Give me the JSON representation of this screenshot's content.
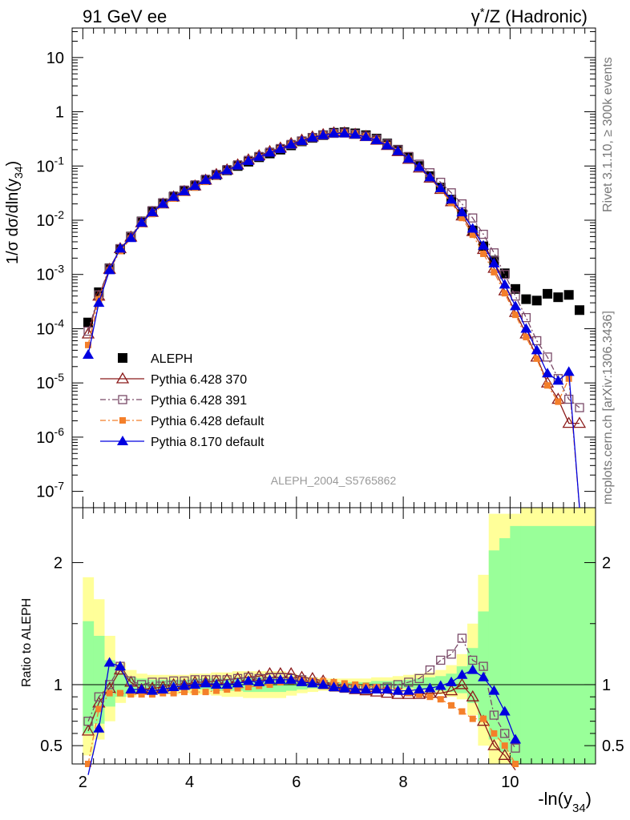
{
  "header": {
    "left": "91 GeV ee",
    "right_sup": "*",
    "right_pre": "γ",
    "right_post": "/Z (Hadronic)"
  },
  "side": {
    "rivet": "Rivet 3.1.10, ≥ 300k events",
    "mcplots": "mcplots.cern.ch [arXiv:1306.3436]"
  },
  "analysis_label": "ALEPH_2004_S5765862",
  "ylabel_top": "1/σ dσ/dln(y34)",
  "ylabel_top_parts": {
    "pre": "1/σ  dσ/dln(y",
    "sub": "34",
    "post": ")"
  },
  "ylabel_bottom": "Ratio to ALEPH",
  "xlabel_parts": {
    "pre": "-ln(y",
    "sub": "34",
    "post": ")"
  },
  "colors": {
    "aleph": "#000000",
    "p370": "#8b1a1a",
    "p391": "#7a4a68",
    "pdef": "#f47f2a",
    "p8": "#0000e0",
    "band_green": "#99ff99",
    "band_yellow": "#ffff99"
  },
  "chart_data": [
    {
      "type": "line",
      "panel": "main",
      "yscale": "log",
      "xlim": [
        1.8,
        11.6
      ],
      "ylim": [
        5e-08,
        35
      ],
      "y_ticks": [
        "10^-7",
        "10^-6",
        "10^-5",
        "10^-4",
        "10^-3",
        "10^-2",
        "10^-1",
        "1",
        "10"
      ],
      "x": [
        2.1,
        2.3,
        2.5,
        2.7,
        2.9,
        3.1,
        3.3,
        3.5,
        3.7,
        3.9,
        4.1,
        4.3,
        4.5,
        4.7,
        4.9,
        5.1,
        5.3,
        5.5,
        5.7,
        5.9,
        6.1,
        6.3,
        6.5,
        6.7,
        6.9,
        7.1,
        7.3,
        7.5,
        7.7,
        7.9,
        8.1,
        8.3,
        8.5,
        8.7,
        8.9,
        9.1,
        9.3,
        9.5,
        9.7,
        9.9,
        10.1,
        10.3,
        10.5,
        10.7,
        10.9,
        11.1,
        11.3
      ],
      "series": [
        {
          "name": "ALEPH",
          "marker": "square-filled",
          "line": "none",
          "values": [
            0.00013,
            0.00047,
            0.0013,
            0.0029,
            0.005,
            0.0095,
            0.0145,
            0.0205,
            0.027,
            0.035,
            0.043,
            0.055,
            0.068,
            0.083,
            0.1,
            0.12,
            0.145,
            0.17,
            0.2,
            0.24,
            0.285,
            0.33,
            0.37,
            0.41,
            0.42,
            0.4,
            0.37,
            0.32,
            0.26,
            0.2,
            0.145,
            0.1,
            0.065,
            0.04,
            0.024,
            0.013,
            0.0065,
            0.0033,
            0.0018,
            0.00105,
            0.00054,
            0.00035,
            0.00033,
            0.00044,
            0.00038,
            0.00042,
            0.00022
          ]
        },
        {
          "name": "Pythia 6.428 370",
          "marker": "triangle-open",
          "line": "solid",
          "values": [
            8e-05,
            0.0004,
            0.00125,
            0.003,
            0.0049,
            0.009,
            0.014,
            0.02,
            0.027,
            0.034,
            0.043,
            0.055,
            0.07,
            0.085,
            0.105,
            0.13,
            0.155,
            0.185,
            0.215,
            0.26,
            0.3,
            0.345,
            0.38,
            0.41,
            0.41,
            0.385,
            0.35,
            0.3,
            0.24,
            0.185,
            0.133,
            0.092,
            0.06,
            0.037,
            0.022,
            0.012,
            0.0062,
            0.0029,
            0.0013,
            0.0005,
            0.0002,
            8e-05,
            3e-05,
            1e-05,
            5e-06,
            1.8e-06,
            1.8e-06
          ]
        },
        {
          "name": "Pythia 6.428 391",
          "marker": "square-open",
          "line": "dashdot",
          "values": [
            9e-05,
            0.00042,
            0.0013,
            0.003,
            0.005,
            0.0095,
            0.015,
            0.021,
            0.028,
            0.036,
            0.045,
            0.057,
            0.07,
            0.086,
            0.105,
            0.127,
            0.15,
            0.18,
            0.21,
            0.25,
            0.29,
            0.335,
            0.37,
            0.4,
            0.405,
            0.385,
            0.355,
            0.31,
            0.255,
            0.2,
            0.15,
            0.108,
            0.075,
            0.05,
            0.032,
            0.02,
            0.011,
            0.0055,
            0.0025,
            0.001,
            0.0004,
            0.00016,
            6e-05,
            3e-05,
            1.2e-05,
            5e-06,
            3.5e-06
          ]
        },
        {
          "name": "Pythia 6.428 default",
          "marker": "square-filled-small",
          "line": "dashdot",
          "values": [
            5e-05,
            0.00035,
            0.0012,
            0.0027,
            0.0046,
            0.0085,
            0.013,
            0.019,
            0.025,
            0.032,
            0.04,
            0.051,
            0.064,
            0.079,
            0.098,
            0.12,
            0.145,
            0.175,
            0.205,
            0.25,
            0.29,
            0.335,
            0.375,
            0.405,
            0.41,
            0.39,
            0.355,
            0.305,
            0.245,
            0.188,
            0.135,
            0.092,
            0.06,
            0.036,
            0.021,
            0.011,
            0.0054,
            0.0024,
            0.0011,
            0.00045,
            0.00018,
            7e-05,
            2.8e-05,
            9e-06,
            4.5e-06,
            1.2e-05,
            0
          ]
        },
        {
          "name": "Pythia 8.170 default",
          "marker": "triangle-filled",
          "line": "solid",
          "values": [
            3.3e-05,
            0.0003,
            0.0012,
            0.003,
            0.0047,
            0.009,
            0.014,
            0.02,
            0.027,
            0.034,
            0.043,
            0.055,
            0.068,
            0.083,
            0.102,
            0.124,
            0.148,
            0.177,
            0.207,
            0.25,
            0.29,
            0.335,
            0.37,
            0.4,
            0.4,
            0.38,
            0.345,
            0.3,
            0.24,
            0.188,
            0.136,
            0.095,
            0.062,
            0.039,
            0.024,
            0.014,
            0.007,
            0.0034,
            0.0016,
            0.00065,
            0.00026,
            0.0001,
            4e-05,
            1.5e-05,
            1.1e-05,
            1.6e-05,
            0
          ]
        }
      ]
    },
    {
      "type": "line",
      "panel": "ratio",
      "xlim": [
        1.8,
        11.6
      ],
      "ylim": [
        0.35,
        2.45
      ],
      "x_ticks": [
        2,
        4,
        6,
        8,
        10
      ],
      "y_ticks": [
        0.5,
        1,
        2
      ],
      "x": [
        2.1,
        2.3,
        2.5,
        2.7,
        2.9,
        3.1,
        3.3,
        3.5,
        3.7,
        3.9,
        4.1,
        4.3,
        4.5,
        4.7,
        4.9,
        5.1,
        5.3,
        5.5,
        5.7,
        5.9,
        6.1,
        6.3,
        6.5,
        6.7,
        6.9,
        7.1,
        7.3,
        7.5,
        7.7,
        7.9,
        8.1,
        8.3,
        8.5,
        8.7,
        8.9,
        9.1,
        9.3,
        9.5,
        9.7,
        9.9,
        10.1
      ],
      "bands": {
        "yellow_lo": [
          0.42,
          0.55,
          0.7,
          0.85,
          0.9,
          0.92,
          0.93,
          0.92,
          0.92,
          0.93,
          0.92,
          0.92,
          0.91,
          0.9,
          0.9,
          0.89,
          0.89,
          0.89,
          0.89,
          0.91,
          0.93,
          0.94,
          0.95,
          0.96,
          0.96,
          0.96,
          0.96,
          0.95,
          0.95,
          0.94,
          0.94,
          0.93,
          0.93,
          0.92,
          0.9,
          0.88,
          0.75,
          0.5,
          0.3,
          0.2,
          0.2
        ],
        "yellow_hi": [
          1.88,
          1.7,
          1.4,
          1.18,
          1.12,
          1.09,
          1.08,
          1.08,
          1.08,
          1.08,
          1.09,
          1.09,
          1.1,
          1.1,
          1.11,
          1.11,
          1.11,
          1.11,
          1.11,
          1.09,
          1.07,
          1.06,
          1.05,
          1.05,
          1.05,
          1.05,
          1.05,
          1.06,
          1.06,
          1.07,
          1.08,
          1.09,
          1.1,
          1.12,
          1.16,
          1.25,
          1.5,
          1.9,
          2.4,
          2.4,
          2.4
        ],
        "green_lo": [
          0.6,
          0.68,
          0.82,
          0.9,
          0.94,
          0.95,
          0.96,
          0.96,
          0.96,
          0.96,
          0.96,
          0.96,
          0.95,
          0.95,
          0.95,
          0.94,
          0.94,
          0.94,
          0.94,
          0.95,
          0.96,
          0.97,
          0.97,
          0.98,
          0.98,
          0.98,
          0.98,
          0.97,
          0.97,
          0.97,
          0.97,
          0.96,
          0.96,
          0.95,
          0.94,
          0.93,
          0.85,
          0.7,
          0.55,
          0.45,
          0.35
        ],
        "green_hi": [
          1.52,
          1.4,
          1.2,
          1.1,
          1.06,
          1.05,
          1.04,
          1.04,
          1.04,
          1.04,
          1.05,
          1.05,
          1.05,
          1.05,
          1.06,
          1.06,
          1.06,
          1.06,
          1.06,
          1.05,
          1.04,
          1.03,
          1.03,
          1.02,
          1.02,
          1.02,
          1.02,
          1.03,
          1.03,
          1.03,
          1.04,
          1.05,
          1.06,
          1.07,
          1.09,
          1.15,
          1.3,
          1.6,
          2.1,
          2.2,
          2.3
        ]
      },
      "series": [
        {
          "name": "Pythia 6.428 370",
          "values": [
            0.62,
            0.85,
            0.97,
            1.12,
            1.02,
            0.96,
            0.97,
            0.98,
            1.0,
            1.0,
            1.02,
            1.02,
            1.03,
            1.04,
            1.05,
            1.06,
            1.07,
            1.09,
            1.09,
            1.09,
            1.06,
            1.05,
            1.03,
            1.0,
            0.98,
            0.96,
            0.95,
            0.94,
            0.93,
            0.92,
            0.92,
            0.92,
            0.93,
            0.93,
            0.95,
            1.0,
            0.9,
            0.7,
            0.5,
            0.42,
            0.3
          ]
        },
        {
          "name": "Pythia 6.428 391",
          "values": [
            0.7,
            0.9,
            1.0,
            1.15,
            1.03,
            1.0,
            1.02,
            1.02,
            1.03,
            1.03,
            1.04,
            1.04,
            1.04,
            1.04,
            1.05,
            1.06,
            1.05,
            1.06,
            1.06,
            1.05,
            1.04,
            1.02,
            1.0,
            0.98,
            0.97,
            0.97,
            0.96,
            0.97,
            0.98,
            1.0,
            1.02,
            1.05,
            1.12,
            1.2,
            1.25,
            1.38,
            1.2,
            1.15,
            0.75,
            0.6,
            0.48
          ]
        },
        {
          "name": "Pythia 6.428 default",
          "values": [
            0.35,
            0.8,
            0.93,
            0.93,
            0.92,
            0.92,
            0.92,
            0.93,
            0.93,
            0.94,
            0.94,
            0.94,
            0.95,
            0.96,
            0.97,
            0.98,
            0.99,
            1.0,
            1.02,
            1.03,
            1.03,
            1.03,
            1.03,
            1.02,
            1.01,
            1.0,
            0.99,
            0.98,
            0.96,
            0.95,
            0.93,
            0.92,
            0.9,
            0.88,
            0.83,
            0.78,
            0.72,
            0.72,
            0.6,
            0.5,
            0.35
          ]
        },
        {
          "name": "Pythia 8.170 default",
          "values": [
            0.26,
            0.64,
            1.18,
            1.15,
            0.96,
            0.96,
            0.95,
            0.96,
            0.98,
            0.99,
            1.0,
            1.01,
            1.0,
            1.0,
            1.01,
            1.03,
            1.02,
            1.04,
            1.04,
            1.04,
            1.02,
            1.01,
            1.0,
            0.98,
            0.97,
            0.96,
            0.96,
            0.96,
            0.96,
            0.95,
            0.95,
            0.96,
            0.97,
            0.99,
            1.02,
            1.08,
            1.12,
            1.06,
            0.95,
            0.78,
            0.55
          ]
        }
      ]
    }
  ]
}
